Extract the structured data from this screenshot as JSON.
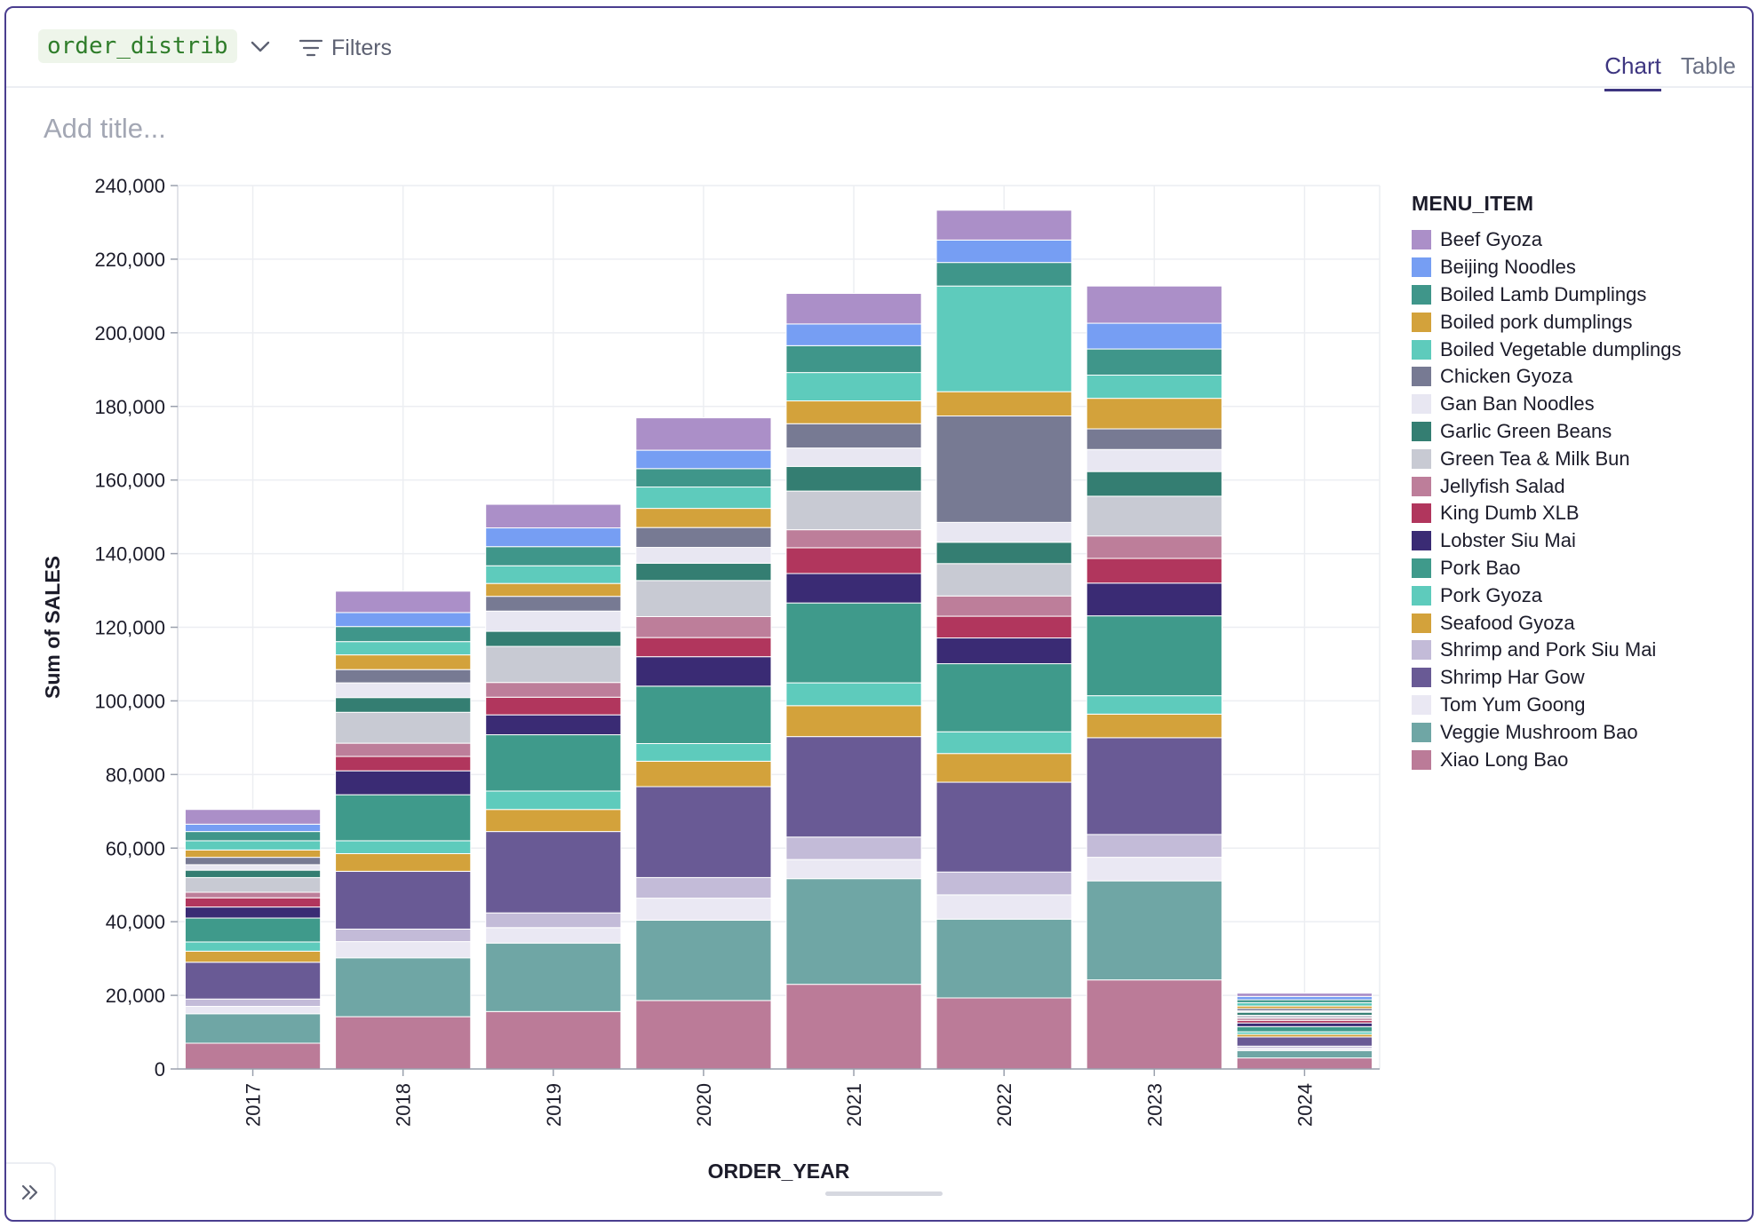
{
  "toolbar": {
    "dataframe_name": "order_distrib",
    "filters_label": "Filters"
  },
  "tabs": [
    {
      "label": "Chart",
      "active": true
    },
    {
      "label": "Table",
      "active": false
    }
  ],
  "title_placeholder": "Add title...",
  "colors": {
    "Beef Gyoza": "#ab8fc8",
    "Beijing Noodles": "#769ef3",
    "Boiled Lamb Dumplings": "#3f968a",
    "Boiled Vegetable dumplings": "#5ecbbc",
    "Boiled pork dumplings": "#d3a23b",
    "Chicken Gyoza": "#777a93",
    "Gan Ban Noodles": "#e8e7f2",
    "Garlic Green Beans": "#347e72",
    "Green Tea & Milk Bun": "#c8cad3",
    "Jellyfish Salad": "#bd7e9a",
    "King Dumb XLB": "#b1365d",
    "Lobster Siu Mai": "#3a2b74",
    "Pork Bao": "#3f9a8b",
    "Pork Gyoza": "#5ecbbc",
    "Seafood Gyoza": "#d3a23b",
    "Shrimp Har Gow": "#695a95",
    "Shrimp and Pork Siu Mai": "#c3bbd8",
    "Tom Yum Goong": "#eae8f3",
    "Veggie Mushroom Bao": "#6fa6a5",
    "Xiao Long Bao": "#bb7b98"
  },
  "chart_data": {
    "type": "bar",
    "stacked": true,
    "xlabel": "ORDER_YEAR",
    "ylabel": "Sum of SALES",
    "ylim": [
      0,
      240000
    ],
    "yticks": [
      0,
      20000,
      40000,
      60000,
      80000,
      100000,
      120000,
      140000,
      160000,
      180000,
      200000,
      220000,
      240000
    ],
    "grid": true,
    "legend_title": "MENU_ITEM",
    "legend_position": "right",
    "categories": [
      "2017",
      "2018",
      "2019",
      "2020",
      "2021",
      "2022",
      "2023",
      "2024"
    ],
    "series": [
      {
        "name": "Xiao Long Bao",
        "values": [
          7000,
          14200,
          15600,
          18600,
          23000,
          19300,
          24200,
          3000
        ]
      },
      {
        "name": "Veggie Mushroom Bao",
        "values": [
          8000,
          16000,
          18600,
          21800,
          28700,
          21400,
          26900,
          2000
        ]
      },
      {
        "name": "Tom Yum Goong",
        "values": [
          2000,
          4400,
          4200,
          6000,
          5200,
          6600,
          6400,
          600
        ]
      },
      {
        "name": "Shrimp and Pork Siu Mai",
        "values": [
          2000,
          3400,
          4000,
          5600,
          6100,
          6200,
          6200,
          600
        ]
      },
      {
        "name": "Shrimp Har Gow",
        "values": [
          10000,
          15700,
          22100,
          24700,
          27300,
          24400,
          26300,
          2500
        ]
      },
      {
        "name": "Seafood Gyoza",
        "values": [
          3000,
          4800,
          6000,
          6900,
          8400,
          7800,
          6400,
          700
        ]
      },
      {
        "name": "Pork Gyoza",
        "values": [
          2500,
          3500,
          5000,
          4800,
          6200,
          5900,
          5000,
          700
        ]
      },
      {
        "name": "Pork Bao",
        "values": [
          6500,
          12500,
          15300,
          15600,
          21700,
          18500,
          21700,
          1400
        ]
      },
      {
        "name": "Lobster Siu Mai",
        "values": [
          3000,
          6500,
          5400,
          8000,
          8000,
          7000,
          8900,
          1000
        ]
      },
      {
        "name": "King Dumb XLB",
        "values": [
          2500,
          3900,
          4800,
          5200,
          7000,
          5900,
          6700,
          700
        ]
      },
      {
        "name": "Jellyfish Salad",
        "values": [
          1500,
          3600,
          4000,
          5700,
          4900,
          5500,
          6100,
          600
        ]
      },
      {
        "name": "Green Tea & Milk Bun",
        "values": [
          4000,
          8400,
          9800,
          9800,
          10500,
          8800,
          10800,
          800
        ]
      },
      {
        "name": "Garlic Green Beans",
        "values": [
          2000,
          4000,
          4100,
          4700,
          6700,
          5800,
          6700,
          800
        ]
      },
      {
        "name": "Gan Ban Noodles",
        "values": [
          1500,
          4000,
          5500,
          4300,
          5000,
          5400,
          6000,
          400
        ]
      },
      {
        "name": "Chicken Gyoza",
        "values": [
          2000,
          3600,
          4000,
          5400,
          6600,
          28900,
          5600,
          600
        ]
      },
      {
        "name": "Boiled pork dumplings",
        "values": [
          2000,
          4000,
          3500,
          5200,
          6200,
          6600,
          8300,
          700
        ]
      },
      {
        "name": "Boiled Vegetable dumplings",
        "values": [
          2500,
          3600,
          4800,
          5800,
          7700,
          28700,
          6300,
          900
        ]
      },
      {
        "name": "Boiled Lamb Dumplings",
        "values": [
          2500,
          4100,
          5200,
          5000,
          7300,
          6400,
          7100,
          800
        ]
      },
      {
        "name": "Beijing Noodles",
        "values": [
          2000,
          3800,
          5100,
          5000,
          5900,
          6100,
          7000,
          900
        ]
      },
      {
        "name": "Beef Gyoza",
        "values": [
          4000,
          5800,
          6400,
          8800,
          8300,
          8100,
          10100,
          900
        ]
      }
    ]
  }
}
